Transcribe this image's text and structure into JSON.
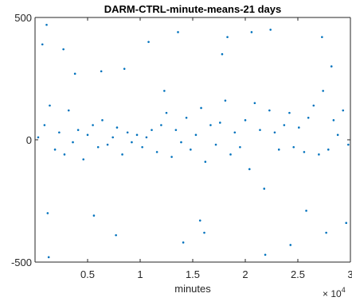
{
  "chart_data": {
    "type": "scatter",
    "title": "DARM-CTRL-minute-means-21 days",
    "xlabel": "minutes",
    "ylabel": "",
    "x_exponent_label": "× 10",
    "x_exponent_power": "4",
    "xlim": [
      0,
      30000
    ],
    "ylim": [
      -500,
      500
    ],
    "x_ticks": [
      5000,
      10000,
      15000,
      20000,
      25000,
      30000
    ],
    "x_tick_labels": [
      "0.5",
      "1",
      "1.5",
      "2",
      "2.5",
      "3"
    ],
    "y_ticks": [
      -500,
      0,
      500
    ],
    "y_tick_labels": [
      "-500",
      "0",
      "500"
    ],
    "grid": false,
    "marker_color": "#0072BD",
    "series": [
      {
        "name": "",
        "x": [
          300,
          900,
          1400,
          1900,
          2300,
          2800,
          3200,
          3600,
          4100,
          4600,
          5000,
          5500,
          6000,
          6400,
          6900,
          7400,
          7800,
          8300,
          8800,
          9200,
          9700,
          10200,
          10600,
          11100,
          11600,
          12000,
          12500,
          13000,
          13400,
          13900,
          14400,
          14800,
          15300,
          15800,
          16200,
          16700,
          17200,
          17600,
          18100,
          18600,
          19000,
          19500,
          20000,
          20400,
          20900,
          21400,
          21800,
          22300,
          22800,
          23200,
          23700,
          24200,
          24600,
          25100,
          25600,
          26000,
          26500,
          27000,
          27400,
          27900,
          28400,
          28800,
          29300,
          29800
        ],
        "y": [
          10,
          60,
          140,
          -40,
          30,
          -60,
          120,
          -10,
          40,
          -80,
          20,
          60,
          -30,
          80,
          -20,
          10,
          50,
          -60,
          30,
          -10,
          20,
          -30,
          10,
          40,
          -50,
          60,
          110,
          -70,
          40,
          -10,
          90,
          -40,
          20,
          130,
          -90,
          60,
          -20,
          70,
          160,
          -60,
          30,
          -30,
          80,
          -120,
          150,
          40,
          -200,
          120,
          30,
          -40,
          60,
          110,
          -30,
          50,
          -50,
          90,
          140,
          -60,
          200,
          -40,
          80,
          20,
          120,
          -20
        ]
      },
      {
        "name": "",
        "x": [
          700,
          1100,
          1200,
          1300,
          2700,
          3800,
          5600,
          6300,
          7700,
          8500,
          10800,
          12300,
          13600,
          14100,
          15700,
          16100,
          17800,
          18300,
          20600,
          21900,
          22400,
          24300,
          25800,
          27300,
          27700,
          28200,
          29600
        ],
        "y": [
          390,
          470,
          -300,
          -480,
          370,
          270,
          -310,
          280,
          -390,
          290,
          400,
          200,
          440,
          -420,
          -330,
          -380,
          350,
          420,
          440,
          -470,
          450,
          -430,
          -290,
          420,
          -380,
          300,
          -340
        ]
      }
    ]
  }
}
